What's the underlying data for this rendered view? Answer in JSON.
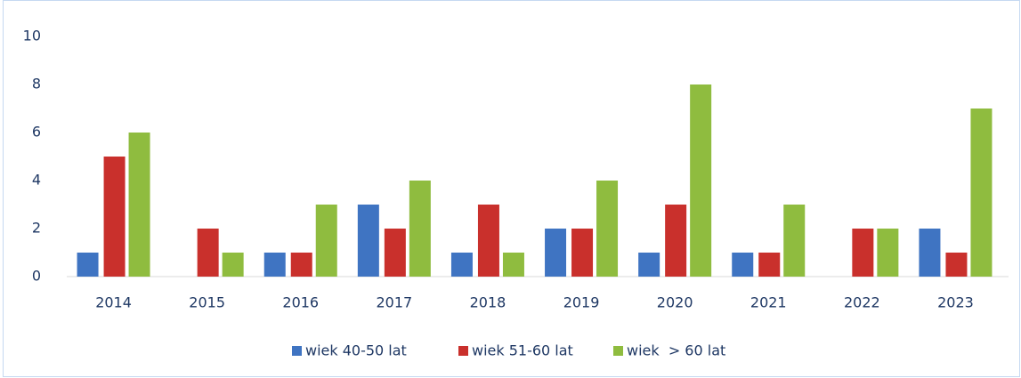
{
  "chart_data": {
    "type": "bar",
    "categories": [
      "2014",
      "2015",
      "2016",
      "2017",
      "2018",
      "2019",
      "2020",
      "2021",
      "2022",
      "2023"
    ],
    "series": [
      {
        "name": "wiek 40-50 lat",
        "color": "#3f74c2",
        "values": [
          1,
          0,
          1,
          3,
          1,
          2,
          1,
          1,
          0,
          2
        ]
      },
      {
        "name": "wiek 51-60 lat",
        "color": "#c9302c",
        "values": [
          5,
          2,
          1,
          2,
          3,
          2,
          3,
          1,
          2,
          1
        ]
      },
      {
        "name": "wiek  > 60 lat",
        "color": "#8fbc3f",
        "values": [
          6,
          1,
          3,
          4,
          1,
          4,
          8,
          3,
          2,
          7
        ]
      }
    ],
    "ylim": [
      0,
      10
    ],
    "yticks": [
      0,
      2,
      4,
      6,
      8,
      10
    ],
    "grid": false,
    "legend": "bottom"
  }
}
